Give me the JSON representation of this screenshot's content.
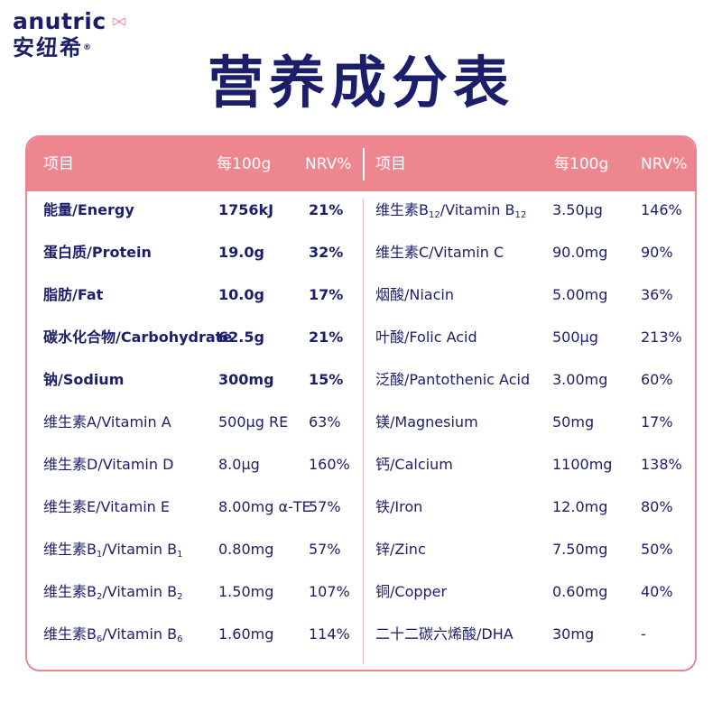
{
  "brand": {
    "name_en": "anutric",
    "name_cn": "安纽希",
    "registered_mark": "®",
    "bow_icon": "bow-icon"
  },
  "title": "营养成分表",
  "colors": {
    "accent": "#ee868f",
    "text": "#1b1e6b",
    "background": "#ffffff"
  },
  "table": {
    "headers": {
      "left": {
        "item": "项目",
        "per100g": "每100g",
        "nrv": "NRV%"
      },
      "right": {
        "item": "项目",
        "per100g": "每100g",
        "nrv": "NRV%"
      }
    },
    "left_rows": [
      {
        "name": "能量/Energy",
        "amount": "1756kJ",
        "nrv": "21%",
        "bold": true
      },
      {
        "name": "蛋白质/Protein",
        "amount": "19.0g",
        "nrv": "32%",
        "bold": true
      },
      {
        "name": "脂肪/Fat",
        "amount": "10.0g",
        "nrv": "17%",
        "bold": true
      },
      {
        "name": "碳水化合物/Carbohydrate",
        "amount": "62.5g",
        "nrv": "21%",
        "bold": true
      },
      {
        "name": "钠/Sodium",
        "amount": "300mg",
        "nrv": "15%",
        "bold": true
      },
      {
        "name": "维生素A/Vitamin A",
        "amount": "500µg RE",
        "nrv": "63%",
        "bold": false
      },
      {
        "name": "维生素D/Vitamin D",
        "amount": "8.0µg",
        "nrv": "160%",
        "bold": false
      },
      {
        "name": "维生素E/Vitamin E",
        "amount": "8.00mg α-TE",
        "nrv": "57%",
        "bold": false
      },
      {
        "name_prefix": "维生素B",
        "name_sub": "1",
        "name_mid": "/Vitamin B",
        "name_sub2": "1",
        "amount": "0.80mg",
        "nrv": "57%",
        "bold": false
      },
      {
        "name_prefix": "维生素B",
        "name_sub": "2",
        "name_mid": "/Vitamin B",
        "name_sub2": "2",
        "amount": "1.50mg",
        "nrv": "107%",
        "bold": false
      },
      {
        "name_prefix": "维生素B",
        "name_sub": "6",
        "name_mid": "/Vitamin B",
        "name_sub2": "6",
        "amount": "1.60mg",
        "nrv": "114%",
        "bold": false
      }
    ],
    "right_rows": [
      {
        "name_prefix": "维生素B",
        "name_sub": "12",
        "name_mid": "/Vitamin B",
        "name_sub2": "12",
        "amount": "3.50µg",
        "nrv": "146%"
      },
      {
        "name": "维生素C/Vitamin C",
        "amount": "90.0mg",
        "nrv": "90%"
      },
      {
        "name": "烟酸/Niacin",
        "amount": "5.00mg",
        "nrv": "36%"
      },
      {
        "name": "叶酸/Folic Acid",
        "amount": "500µg",
        "nrv": "213%"
      },
      {
        "name": "泛酸/Pantothenic Acid",
        "amount": "3.00mg",
        "nrv": "60%"
      },
      {
        "name": "镁/Magnesium",
        "amount": "50mg",
        "nrv": "17%"
      },
      {
        "name": "钙/Calcium",
        "amount": "1100mg",
        "nrv": "138%"
      },
      {
        "name": "铁/Iron",
        "amount": "12.0mg",
        "nrv": "80%"
      },
      {
        "name": "锌/Zinc",
        "amount": "7.50mg",
        "nrv": "50%"
      },
      {
        "name": "铜/Copper",
        "amount": "0.60mg",
        "nrv": "40%"
      },
      {
        "name": "二十二碳六烯酸/DHA",
        "amount": "30mg",
        "nrv": "-"
      }
    ]
  }
}
